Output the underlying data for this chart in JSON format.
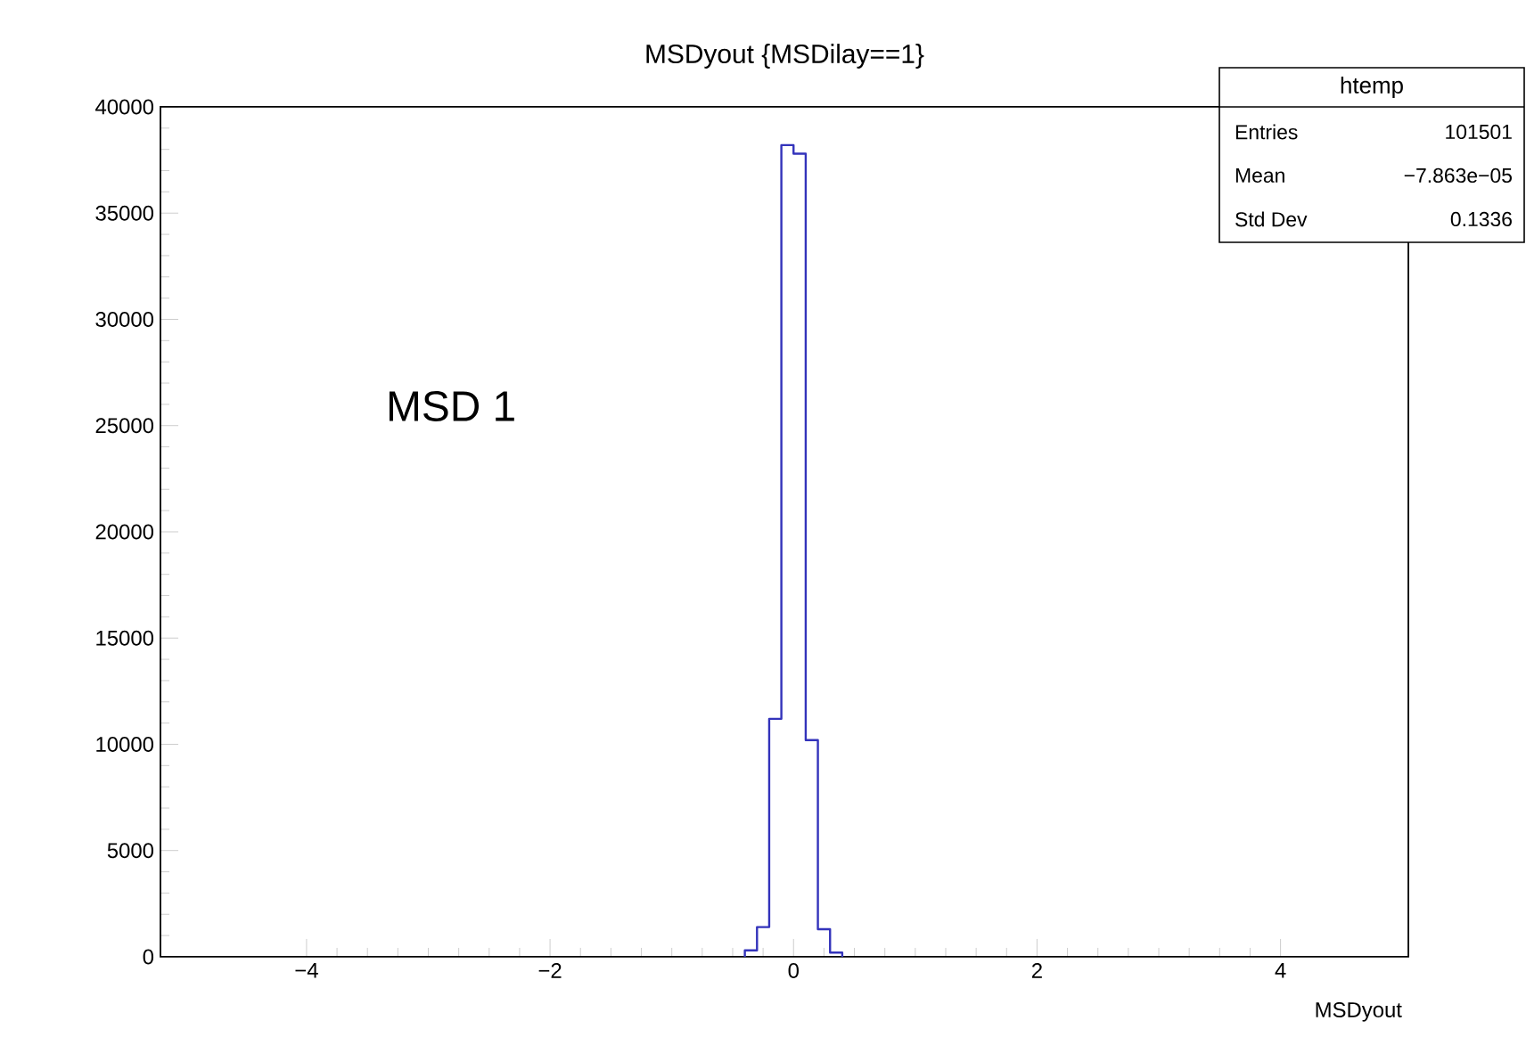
{
  "chart_data": {
    "type": "histogram",
    "title": "MSDyout {MSDilay==1}",
    "xlabel": "MSDyout",
    "bins": [
      -0.4,
      -0.3,
      -0.2,
      -0.1,
      0,
      0.1,
      0.2,
      0.3,
      0.4
    ],
    "values": [
      300,
      1400,
      11200,
      38200,
      37800,
      10200,
      1300,
      200
    ],
    "color": "#3333bb",
    "xlim": [
      -5.2,
      5.05
    ],
    "ylim": [
      0,
      40000
    ],
    "xticks": [
      {
        "value": -4,
        "label": "−4"
      },
      {
        "value": -2,
        "label": "−2"
      },
      0,
      2,
      4
    ],
    "yticks": [
      0,
      5000,
      10000,
      15000,
      20000,
      25000,
      30000,
      35000,
      40000
    ],
    "grid": false,
    "annotations": [
      "MSD 1",
      "htemp",
      "Entries",
      "101501",
      "Mean",
      "−7.863e−05",
      "Std Dev",
      "0.1336"
    ]
  }
}
